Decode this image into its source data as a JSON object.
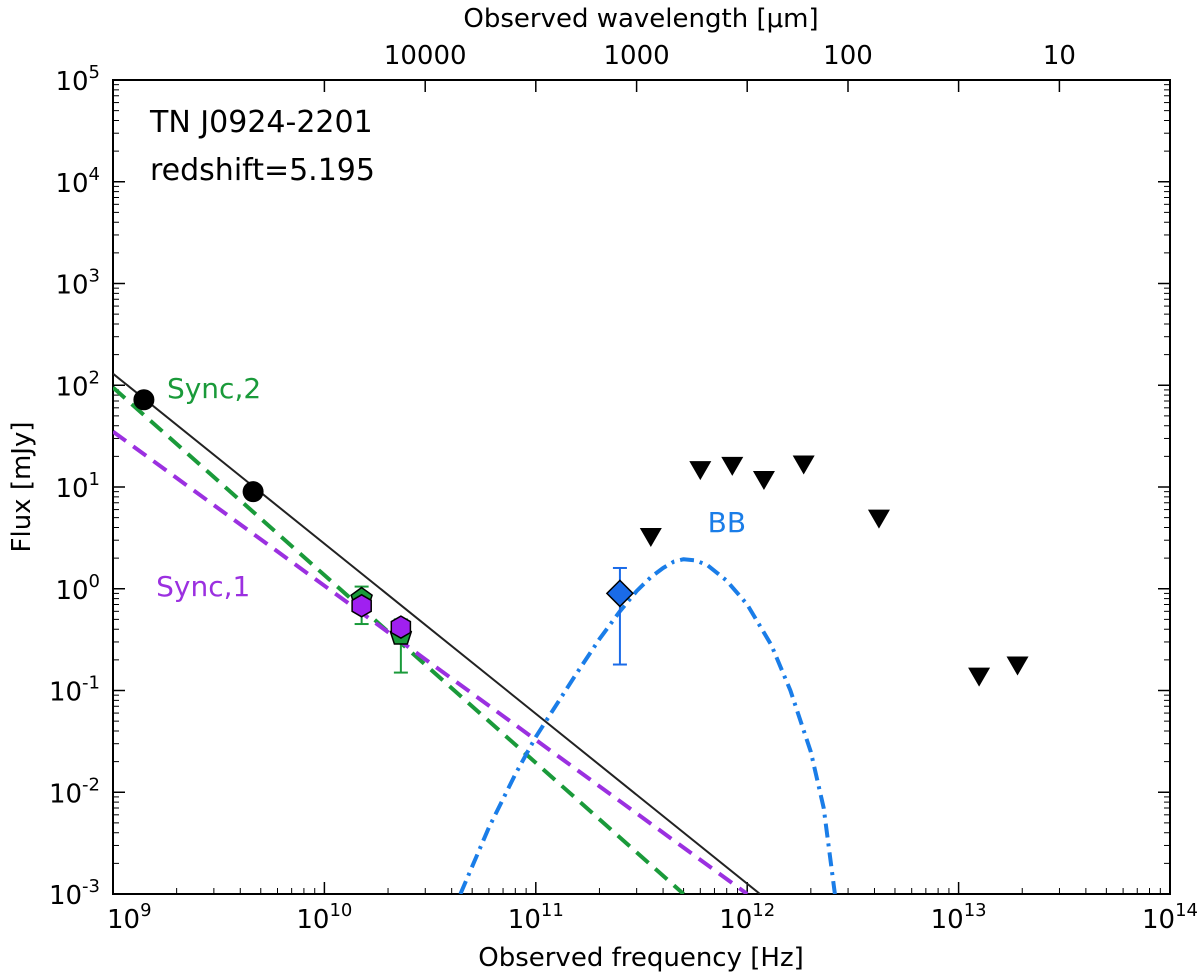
{
  "chart_data": {
    "type": "scatter",
    "title": "",
    "xlabel": "Observed frequency [Hz]",
    "ylabel": "Flux [mJy]",
    "top_xlabel": "Observed wavelength [μm]",
    "xscale": "log",
    "yscale": "log",
    "xlim": [
      1000000000.0,
      100000000000000.0
    ],
    "ylim": [
      0.001,
      100000
    ],
    "grid": false,
    "x_ticks": [
      {
        "value": 1000000000.0,
        "base": "10",
        "exp": "9"
      },
      {
        "value": 10000000000.0,
        "base": "10",
        "exp": "10"
      },
      {
        "value": 100000000000.0,
        "base": "10",
        "exp": "11"
      },
      {
        "value": 1000000000000.0,
        "base": "10",
        "exp": "12"
      },
      {
        "value": 10000000000000.0,
        "base": "10",
        "exp": "13"
      },
      {
        "value": 100000000000000.0,
        "base": "10",
        "exp": "14"
      }
    ],
    "y_ticks": [
      {
        "value": 0.001,
        "base": "10",
        "exp": "-3"
      },
      {
        "value": 0.01,
        "base": "10",
        "exp": "-2"
      },
      {
        "value": 0.1,
        "base": "10",
        "exp": "-1"
      },
      {
        "value": 1,
        "base": "10",
        "exp": "0"
      },
      {
        "value": 10,
        "base": "10",
        "exp": "1"
      },
      {
        "value": 100,
        "base": "10",
        "exp": "2"
      },
      {
        "value": 1000,
        "base": "10",
        "exp": "3"
      },
      {
        "value": 10000,
        "base": "10",
        "exp": "4"
      },
      {
        "value": 100000,
        "base": "10",
        "exp": "5"
      }
    ],
    "top_ticks": [
      {
        "wavelength_um": 10000,
        "label": "10000"
      },
      {
        "wavelength_um": 1000,
        "label": "1000"
      },
      {
        "wavelength_um": 100,
        "label": "100"
      },
      {
        "wavelength_um": 10,
        "label": "10"
      }
    ],
    "annotations": [
      {
        "text": "TN J0924-2201",
        "position": "top-left"
      },
      {
        "text": "redshift=5.195",
        "position": "top-left"
      }
    ],
    "series": [
      {
        "name": "Sync,2",
        "kind": "line",
        "style": "dashed",
        "color": "#1a9a3a",
        "label_at": {
          "x": 1800000000.0,
          "y": 75
        },
        "points": [
          [
            1000000000.0,
            95
          ],
          [
            500000000000.0,
            0.001
          ]
        ]
      },
      {
        "name": "Sync,1",
        "kind": "line",
        "style": "dashed",
        "color": "#9b30e0",
        "label_at": {
          "x": 1600000000.0,
          "y": 0.85
        },
        "points": [
          [
            1000000000.0,
            35
          ],
          [
            1000000000000.0,
            0.001
          ]
        ]
      },
      {
        "name": "BB",
        "kind": "curve",
        "style": "dashdot",
        "color": "#1a7de8",
        "label_at": {
          "x": 650000000000.0,
          "y": 3.6
        },
        "points": [
          [
            44000000000.0,
            0.001
          ],
          [
            60000000000.0,
            0.0045
          ],
          [
            80000000000.0,
            0.015
          ],
          [
            100000000000.0,
            0.035
          ],
          [
            150000000000.0,
            0.13
          ],
          [
            200000000000.0,
            0.32
          ],
          [
            250000000000.0,
            0.6
          ],
          [
            300000000000.0,
            0.95
          ],
          [
            350000000000.0,
            1.3
          ],
          [
            400000000000.0,
            1.6
          ],
          [
            450000000000.0,
            1.85
          ],
          [
            500000000000.0,
            1.95
          ],
          [
            570000000000.0,
            1.9
          ],
          [
            650000000000.0,
            1.7
          ],
          [
            800000000000.0,
            1.2
          ],
          [
            1000000000000.0,
            0.7
          ],
          [
            1300000000000.0,
            0.28
          ],
          [
            1600000000000.0,
            0.1
          ],
          [
            2000000000000.0,
            0.025
          ],
          [
            2300000000000.0,
            0.007
          ],
          [
            2600000000000.0,
            0.001
          ]
        ]
      },
      {
        "name": "",
        "kind": "line",
        "style": "solid",
        "color": "#222222",
        "points": [
          [
            1000000000.0,
            130
          ],
          [
            1150000000000.0,
            0.001
          ]
        ]
      }
    ],
    "points": {
      "black_circles": [
        [
          1400000000.0,
          72
        ],
        [
          4600000000.0,
          9
        ]
      ],
      "green_pentagons": [
        {
          "x": 15000000000.0,
          "y": 0.8,
          "err_low": 0.35,
          "err_high": 0.25
        },
        {
          "x": 23000000000.0,
          "y": 0.35,
          "err_low": 0.2,
          "err_high": 0.15
        }
      ],
      "purple_hexagons": [
        [
          15000000000.0,
          0.68
        ],
        [
          23000000000.0,
          0.42
        ]
      ],
      "blue_diamond": {
        "x": 250000000000.0,
        "y": 0.9,
        "err_low": 0.72,
        "err_high": 0.7
      },
      "upper_limits": [
        [
          350000000000.0,
          3.3
        ],
        [
          600000000000.0,
          15
        ],
        [
          850000000000.0,
          16.5
        ],
        [
          1200000000000.0,
          12
        ],
        [
          1850000000000.0,
          17
        ],
        [
          4200000000000.0,
          5
        ],
        [
          12500000000000.0,
          0.14
        ],
        [
          19000000000000.0,
          0.18
        ]
      ]
    },
    "colors": {
      "sync2": "#1a9a3a",
      "sync1": "#9b30e0",
      "bb": "#1a7de8",
      "power_law": "#222222",
      "circle": "#000000",
      "pentagon": "#1a9a3a",
      "hexagon": "#a020f0",
      "diamond": "#1a6be8",
      "triangle": "#000000"
    }
  }
}
